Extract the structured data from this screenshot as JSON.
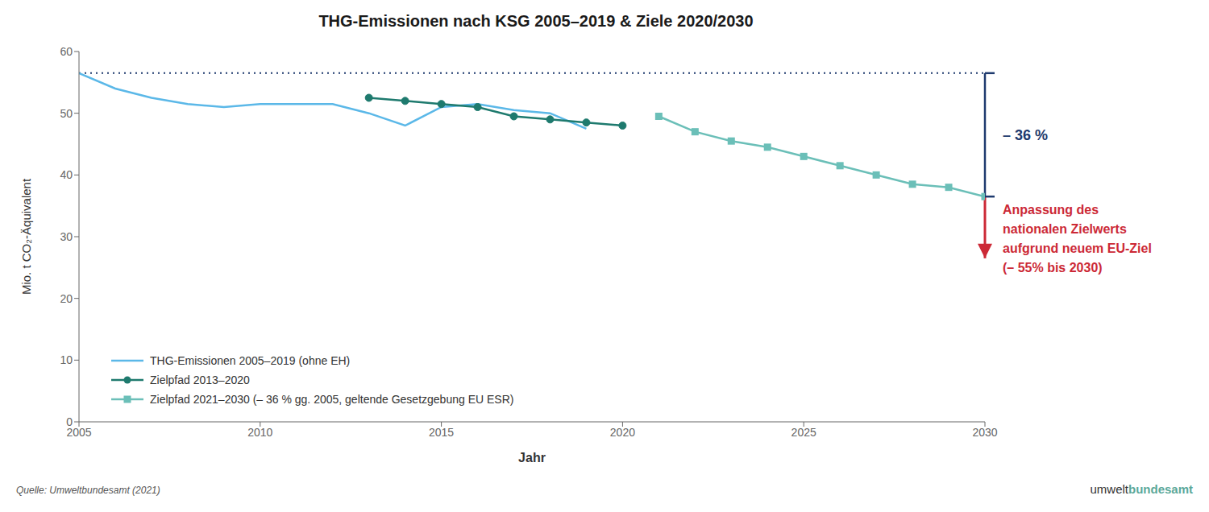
{
  "chart_data": {
    "type": "line",
    "title": "THG-Emissionen nach KSG 2005–2019 & Ziele 2020/2030",
    "x_label": "Jahr",
    "y_label": "Mio. t CO₂-Äquivalent",
    "x": [
      2005,
      2006,
      2007,
      2008,
      2009,
      2010,
      2011,
      2012,
      2013,
      2014,
      2015,
      2016,
      2017,
      2018,
      2019,
      2020,
      2021,
      2022,
      2023,
      2024,
      2025,
      2026,
      2027,
      2028,
      2029,
      2030
    ],
    "xlim": [
      2005,
      2030
    ],
    "ylim": [
      0,
      60
    ],
    "xticks": [
      2005,
      2010,
      2015,
      2020,
      2025,
      2030
    ],
    "yticks": [
      0,
      10,
      20,
      30,
      40,
      50,
      60
    ],
    "grid": false,
    "legend": "lower left",
    "series": [
      {
        "name": "THG-Emissionen 2005–2019 (ohne EH)",
        "color": "#5BB8E8",
        "values": [
          56.5,
          54.0,
          52.5,
          51.5,
          51.0,
          51.5,
          51.5,
          51.5,
          50.0,
          48.0,
          51.0,
          51.5,
          50.5,
          50.0,
          47.5,
          null,
          null,
          null,
          null,
          null,
          null,
          null,
          null,
          null,
          null,
          null
        ]
      },
      {
        "name": "Zielpfad 2013–2020",
        "color": "#1E7A6E",
        "marker": "circle",
        "values": [
          null,
          null,
          null,
          null,
          null,
          null,
          null,
          null,
          52.5,
          52.0,
          51.5,
          51.0,
          49.5,
          49.0,
          48.5,
          48.0,
          null,
          null,
          null,
          null,
          null,
          null,
          null,
          null,
          null,
          null
        ]
      },
      {
        "name": "Zielpfad 2021–2030 (– 36 % gg. 2005, geltende Gesetzgebung EU ESR)",
        "color": "#6BBFB8",
        "marker": "square",
        "values": [
          null,
          null,
          null,
          null,
          null,
          null,
          null,
          null,
          null,
          null,
          null,
          null,
          null,
          null,
          null,
          null,
          49.5,
          47.0,
          45.5,
          44.5,
          43.0,
          41.5,
          40.0,
          38.5,
          38.0,
          36.5
        ]
      }
    ],
    "reference_line": {
      "y": 56.5,
      "color": "#1E3A6E",
      "line_style": "dotted"
    },
    "annotations": [
      {
        "type": "brace",
        "text": "– 36 %",
        "color": "#1E3A6E",
        "x": 2030,
        "y_from": 56.5,
        "y_to": 36.5
      },
      {
        "type": "arrow",
        "text": "Anpassung des\nnationalen Zielwerts\naufgrund neuem EU-Ziel\n(– 55% bis 2030)",
        "color": "#CC2936",
        "x": 2030,
        "y_from": 36.5,
        "y_to": 26.5
      }
    ],
    "source": "Quelle: Umweltbundesamt (2021)",
    "logo": [
      {
        "text": "umwelt",
        "color": "#333333"
      },
      {
        "text": "bundesamt",
        "color": "#5BA89A"
      }
    ]
  }
}
